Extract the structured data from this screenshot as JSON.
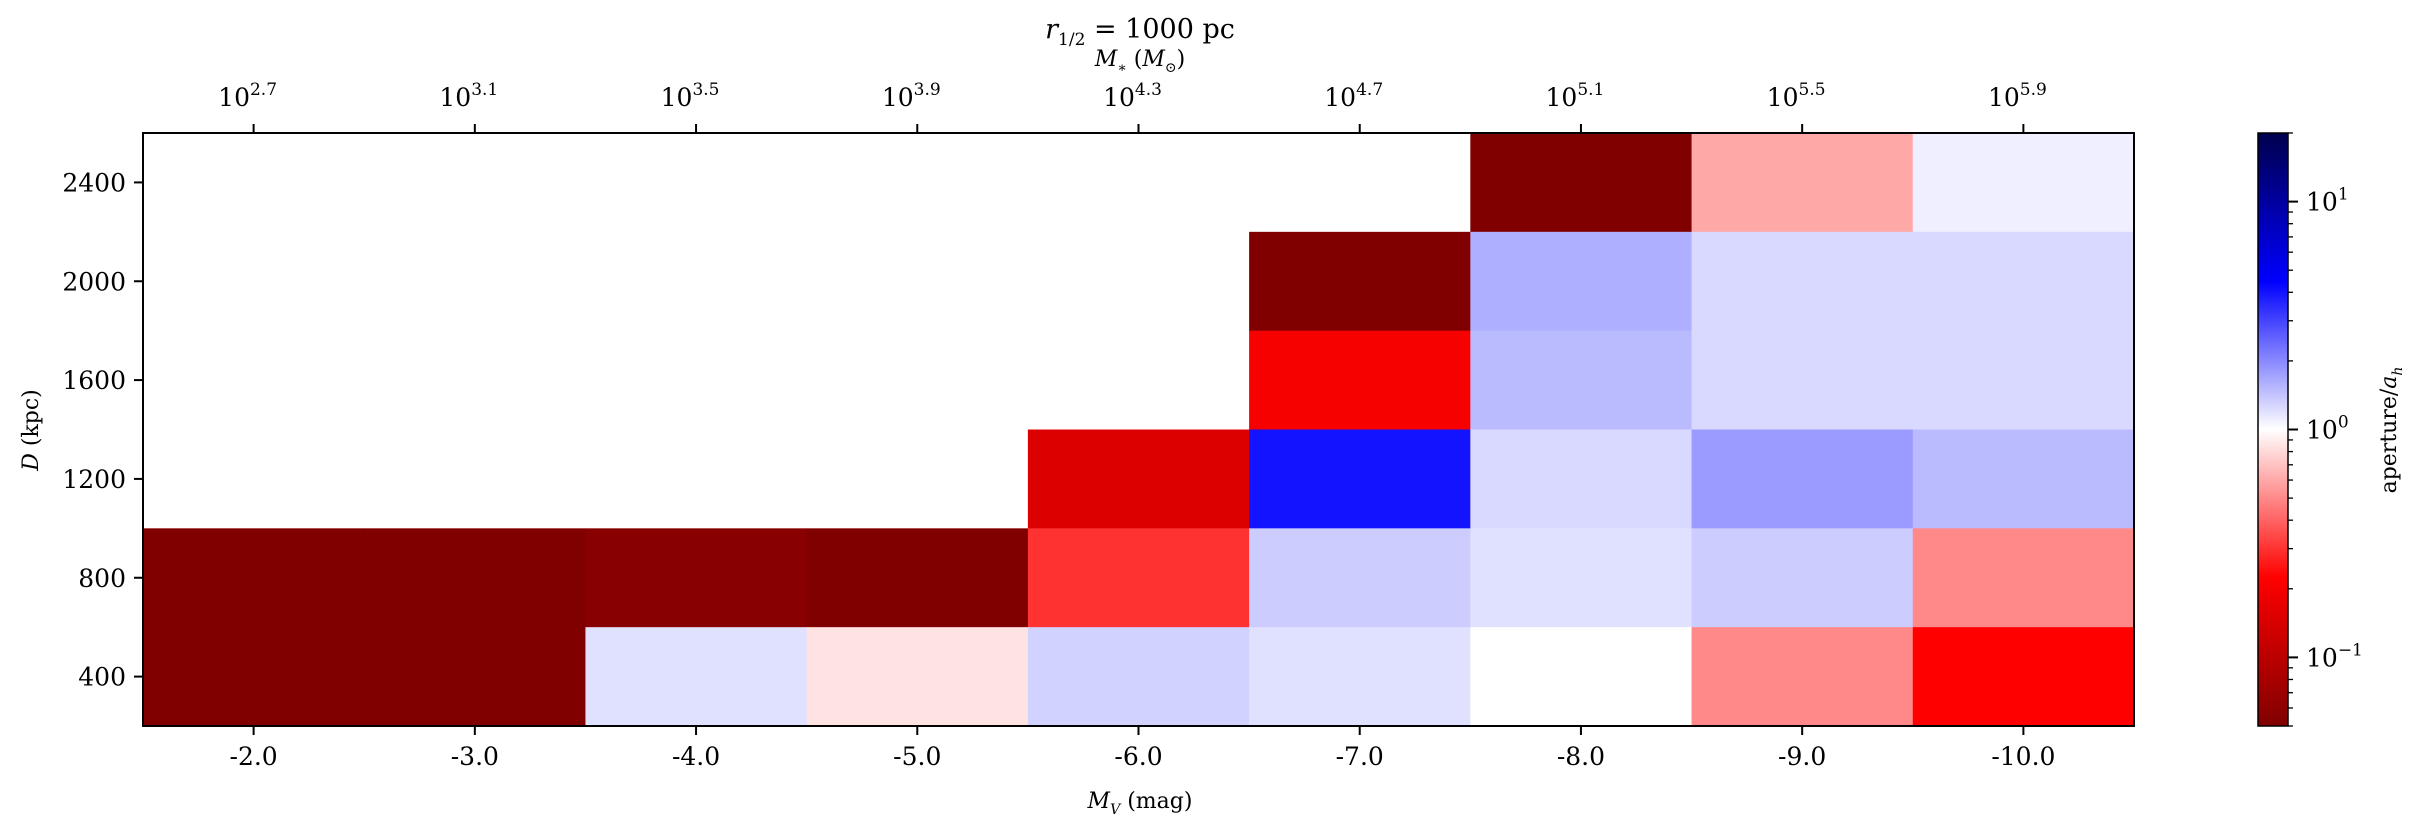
{
  "chart_data": {
    "type": "heatmap",
    "title": "r_{1/2} = 1000 pc",
    "xlabel": "M_V (mag)",
    "ylabel": "D (kpc)",
    "top_xlabel": "M_* (M_⊙)",
    "colorbar_label": "aperture/a_h",
    "color_scale": "log",
    "colormap": "seismic_r",
    "color_range": [
      0.05,
      20
    ],
    "x_categories": [
      "-2.0",
      "-3.0",
      "-4.0",
      "-5.0",
      "-6.0",
      "-7.0",
      "-8.0",
      "-9.0",
      "-10.0"
    ],
    "y_categories": [
      "400",
      "800",
      "1200",
      "1600",
      "2000",
      "2400"
    ],
    "top_tick_labels": [
      "2.7",
      "3.1",
      "3.5",
      "3.9",
      "4.3",
      "4.7",
      "5.1",
      "5.5",
      "5.9"
    ],
    "colorbar_tick_labels": [
      {
        "base": "10",
        "exp": "1",
        "value": 10
      },
      {
        "base": "10",
        "exp": "0",
        "value": 1
      },
      {
        "base": "10",
        "exp": "−1",
        "value": 0.1
      }
    ],
    "rows": [
      {
        "D": "2400",
        "values": [
          null,
          null,
          null,
          null,
          null,
          null,
          0.05,
          0.6,
          1.1
        ]
      },
      {
        "D": "2000",
        "values": [
          null,
          null,
          null,
          null,
          null,
          0.05,
          1.6,
          1.25,
          1.25
        ]
      },
      {
        "D": "1600",
        "values": [
          null,
          null,
          null,
          null,
          null,
          0.2,
          1.5,
          1.25,
          1.25
        ]
      },
      {
        "D": "1200",
        "values": [
          null,
          null,
          null,
          null,
          0.15,
          4.0,
          1.25,
          1.8,
          1.5
        ]
      },
      {
        "D": "800",
        "values": [
          0.05,
          0.05,
          0.055,
          0.05,
          0.3,
          1.35,
          1.2,
          1.35,
          0.5
        ]
      },
      {
        "D": "400",
        "values": [
          0.05,
          0.05,
          1.2,
          0.85,
          1.3,
          1.2,
          1.0,
          0.5,
          0.22
        ]
      }
    ]
  }
}
